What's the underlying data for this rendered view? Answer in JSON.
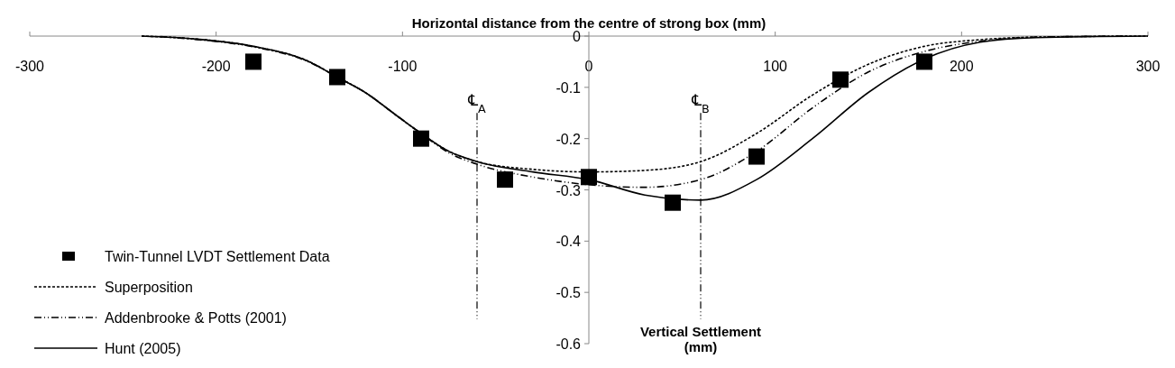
{
  "chart_data": {
    "type": "line",
    "xlabel": "Horizontal distance from the centre of strong box (mm)",
    "ylabel": "Vertical Settlement (mm)",
    "xlim": [
      -300,
      300
    ],
    "xticks": [
      -300,
      -200,
      -100,
      0,
      100,
      200,
      300
    ],
    "ylim": [
      -0.6,
      0
    ],
    "yticks": [
      -0.6,
      -0.5,
      -0.4,
      -0.3,
      -0.2,
      -0.1,
      0
    ],
    "legend": "bottom left",
    "series": [
      {
        "name": "Twin-Tunnel LVDT Settlement Data",
        "type": "scatter",
        "marker": "square",
        "color": "#000000",
        "x": [
          -180,
          -135,
          -90,
          -45,
          0,
          45,
          90,
          135,
          180
        ],
        "values": [
          -0.05,
          -0.08,
          -0.2,
          -0.28,
          -0.275,
          -0.325,
          -0.235,
          -0.085,
          -0.05
        ]
      },
      {
        "name": "Superposition",
        "line_style": "dashed",
        "color": "#000000",
        "x": [
          -240,
          -210,
          -180,
          -150,
          -135,
          -120,
          -105,
          -90,
          -75,
          -60,
          -30,
          0,
          30,
          60,
          90,
          120,
          150,
          180,
          210,
          240,
          300
        ],
        "values": [
          0,
          -0.006,
          -0.02,
          -0.05,
          -0.08,
          -0.11,
          -0.15,
          -0.19,
          -0.225,
          -0.245,
          -0.26,
          -0.265,
          -0.262,
          -0.245,
          -0.19,
          -0.115,
          -0.055,
          -0.02,
          -0.007,
          -0.002,
          0
        ]
      },
      {
        "name": "Addenbrooke & Potts (2001)",
        "line_style": "dashdot",
        "color": "#000000",
        "x": [
          -230,
          -210,
          -180,
          -150,
          -135,
          -120,
          -105,
          -90,
          -75,
          -60,
          -30,
          0,
          30,
          60,
          90,
          120,
          150,
          180,
          210,
          240,
          290
        ],
        "values": [
          -0.001,
          -0.007,
          -0.021,
          -0.051,
          -0.08,
          -0.11,
          -0.15,
          -0.19,
          -0.228,
          -0.25,
          -0.275,
          -0.29,
          -0.295,
          -0.28,
          -0.225,
          -0.14,
          -0.07,
          -0.03,
          -0.01,
          -0.002,
          0
        ]
      },
      {
        "name": "Hunt (2005)",
        "line_style": "solid",
        "color": "#000000",
        "x": [
          -240,
          -210,
          -180,
          -150,
          -135,
          -120,
          -105,
          -90,
          -75,
          -60,
          -30,
          0,
          30,
          60,
          90,
          120,
          150,
          180,
          210,
          240,
          300
        ],
        "values": [
          0,
          -0.006,
          -0.02,
          -0.05,
          -0.08,
          -0.11,
          -0.15,
          -0.19,
          -0.225,
          -0.245,
          -0.265,
          -0.28,
          -0.31,
          -0.32,
          -0.28,
          -0.2,
          -0.11,
          -0.045,
          -0.012,
          -0.003,
          0
        ]
      }
    ],
    "ref_lines": [
      {
        "axis": "x",
        "value": -60,
        "label": "℄$_{A}$",
        "line_style": "dashdot"
      },
      {
        "axis": "x",
        "value": 60,
        "label": "℄$_{B}$",
        "line_style": "dashdot"
      }
    ]
  }
}
